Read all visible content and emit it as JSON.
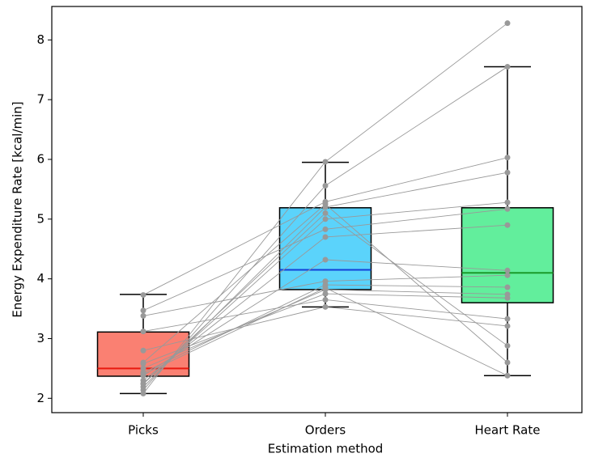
{
  "chart_data": {
    "type": "box",
    "x_label": "Estimation method",
    "y_label": "Energy Expenditure Rate [kcal/min]",
    "categories": [
      "Picks",
      "Orders",
      "Heart Rate"
    ],
    "boxes": [
      {
        "whisker_low": 2.08,
        "q1": 2.37,
        "median": 2.5,
        "q3": 3.11,
        "whisker_high": 3.74,
        "color": "#fa8072",
        "median_color": "#e8190f"
      },
      {
        "whisker_low": 3.53,
        "q1": 3.82,
        "median": 4.15,
        "q3": 5.19,
        "whisker_high": 5.95,
        "color": "#5bd3fb",
        "median_color": "#1340d8"
      },
      {
        "whisker_low": 2.38,
        "q1": 3.6,
        "median": 4.1,
        "q3": 5.19,
        "whisker_high": 7.55,
        "color": "#62ee9c",
        "median_color": "#1a9a2a"
      }
    ],
    "subjects": [
      [
        2.08,
        5.96,
        8.28
      ],
      [
        2.14,
        5.56,
        7.55
      ],
      [
        3.73,
        5.29,
        6.03
      ],
      [
        2.19,
        5.2,
        5.78
      ],
      [
        2.24,
        5.0,
        5.28
      ],
      [
        3.47,
        4.83,
        5.17
      ],
      [
        2.3,
        4.7,
        4.9
      ],
      [
        2.38,
        4.32,
        4.14
      ],
      [
        3.38,
        3.96,
        4.06
      ],
      [
        2.43,
        3.9,
        3.86
      ],
      [
        2.5,
        3.82,
        3.74
      ],
      [
        2.58,
        3.75,
        3.68
      ],
      [
        3.12,
        3.65,
        3.33
      ],
      [
        2.8,
        3.53,
        3.21
      ],
      [
        2.25,
        5.1,
        2.88
      ],
      [
        2.6,
        5.25,
        2.6
      ],
      [
        2.4,
        3.85,
        2.38
      ]
    ],
    "point_color": "#999999",
    "ylim": [
      1.76,
      8.56
    ],
    "yticks": [
      2,
      3,
      4,
      5,
      6,
      7,
      8
    ]
  }
}
